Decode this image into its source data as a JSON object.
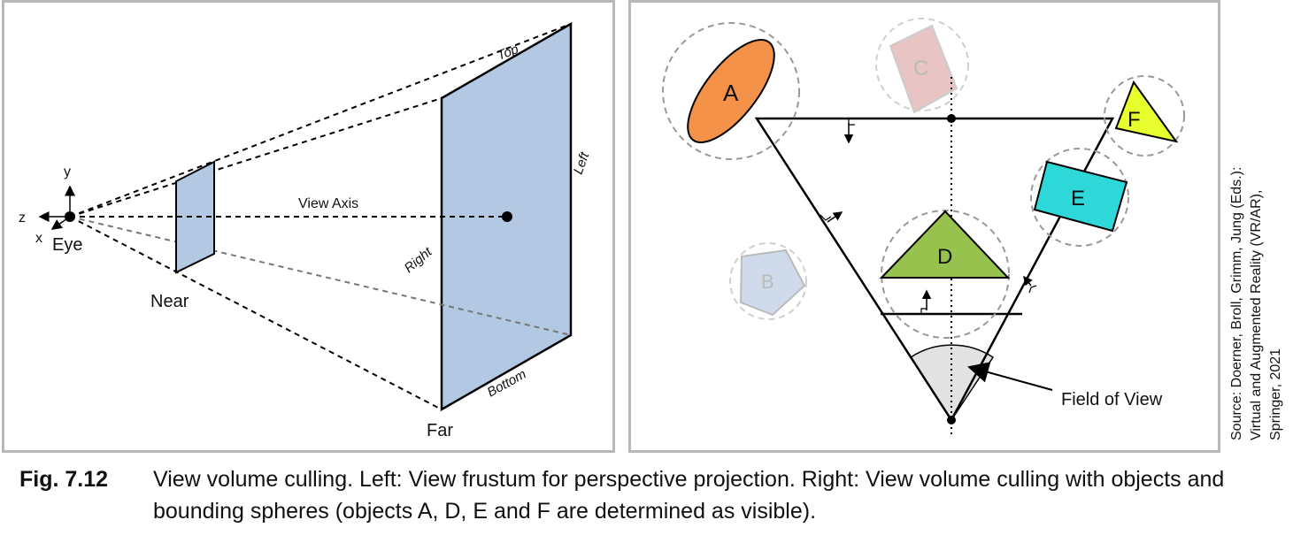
{
  "left_diagram": {
    "axis_y": "y",
    "axis_z": "z",
    "axis_x": "x",
    "eye": "Eye",
    "near": "Near",
    "far": "Far",
    "view_axis": "View Axis",
    "top": "Top",
    "left": "Left",
    "right": "Right",
    "bottom": "Bottom",
    "colors": {
      "plane_fill": "#b3c8e2",
      "line": "#000000"
    }
  },
  "right_diagram": {
    "objects": [
      {
        "id": "A",
        "label": "A",
        "visible": true,
        "fill": "#f4924a"
      },
      {
        "id": "C",
        "label": "C",
        "visible": false,
        "fill": "#e8c4c4"
      },
      {
        "id": "F",
        "label": "F",
        "visible": true,
        "fill": "#e8ff2e"
      },
      {
        "id": "E",
        "label": "E",
        "visible": true,
        "fill": "#2ed8d8"
      },
      {
        "id": "D",
        "label": "D",
        "visible": true,
        "fill": "#96c24d"
      },
      {
        "id": "B",
        "label": "B",
        "visible": false,
        "fill": "#cfdaea"
      }
    ],
    "field_of_view_label": "Field of View",
    "fov_fill": "#e2e2e2"
  },
  "source": {
    "line1": "Source: Doerner, Broll, Grimm, Jung (Eds.):",
    "line2": "Virtual and Augmented Reality (VR/AR),",
    "line3": "Springer, 2021"
  },
  "caption": {
    "number": "Fig. 7.12",
    "text": "View volume culling. Left: View frustum for perspective projection. Right: View volume culling with objects and bounding spheres (objects A, D, E and F are determined as visible)."
  }
}
